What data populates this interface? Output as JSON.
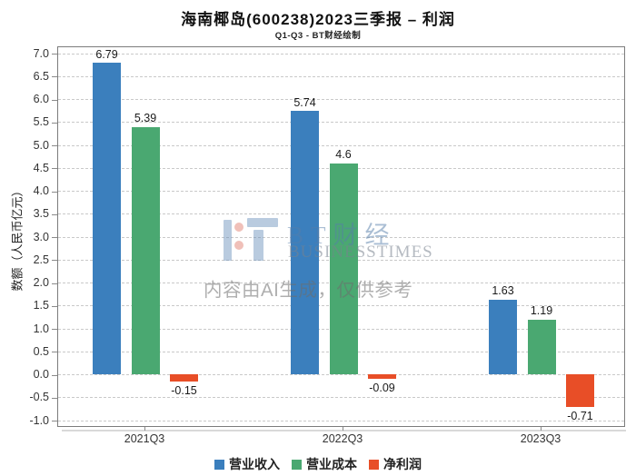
{
  "header": {
    "title": "海南椰岛(600238)2023三季报 – 利润",
    "subtitle": "Q1-Q3 - BT财经绘制"
  },
  "watermark": {
    "brand_cn": "BT财经",
    "brand_en": "BUSINESSTIMES",
    "disclaimer": "内容由AI生成，仅供参考",
    "brand_color": "#b5c9dd",
    "disclaimer_color": "#b3b3b3"
  },
  "chart_data": {
    "type": "bar",
    "title": "海南椰岛(600238)2023三季报 – 利润",
    "subtitle": "Q1-Q3 - BT财经绘制",
    "categories": [
      "2021Q3",
      "2022Q3",
      "2023Q3"
    ],
    "series": [
      {
        "name": "营业收入",
        "color": "#3b7fbd",
        "values": [
          6.79,
          5.74,
          1.63
        ]
      },
      {
        "name": "营业成本",
        "color": "#4aa871",
        "values": [
          5.39,
          4.6,
          1.19
        ]
      },
      {
        "name": "净利润",
        "color": "#e84e27",
        "values": [
          -0.15,
          -0.09,
          -0.71
        ]
      }
    ],
    "xlabel": "",
    "ylabel": "数额（人民币亿元）",
    "ylim": [
      -1.0,
      7.0
    ],
    "ytick_step": 0.5,
    "grid": true,
    "grid_style": "dashed",
    "legend_position": "bottom",
    "bar_labels_shown": true
  }
}
